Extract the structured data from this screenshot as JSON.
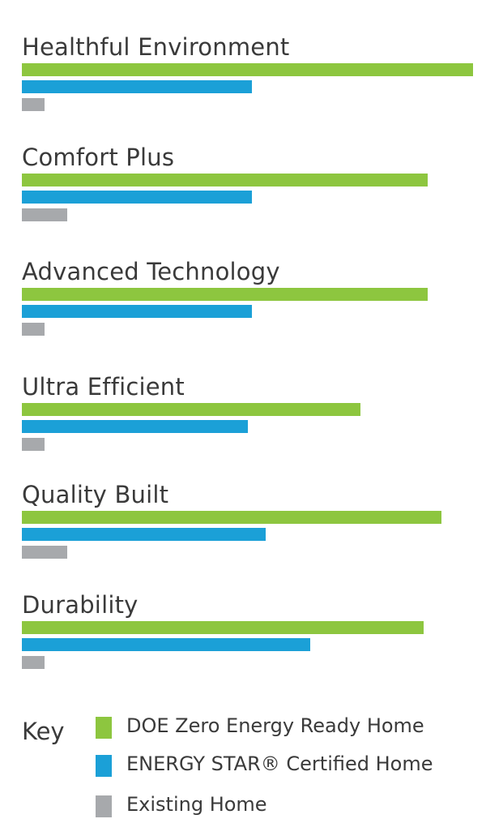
{
  "colors": {
    "doe": "#8dc63f",
    "energy_star": "#1ba0d7",
    "existing": "#a7a9ac",
    "text": "#3a3a3a"
  },
  "chart_data": {
    "type": "bar",
    "orientation": "horizontal",
    "categories": [
      "Healthful Environment",
      "Comfort Plus",
      "Advanced Technology",
      "Ultra Efficient",
      "Quality Built",
      "Durability"
    ],
    "series": [
      {
        "name": "DOE Zero Energy Ready Home",
        "color": "#8dc63f",
        "values": [
          100,
          90,
          90,
          75,
          93,
          89
        ]
      },
      {
        "name": "ENERGY STAR® Certified Home",
        "color": "#1ba0d7",
        "values": [
          51,
          51,
          51,
          50,
          54,
          64
        ]
      },
      {
        "name": "Existing Home",
        "color": "#a7a9ac",
        "values": [
          5,
          10,
          5,
          5,
          10,
          5
        ]
      }
    ],
    "xlim": [
      0,
      100
    ],
    "grid": false,
    "axes_shown": false,
    "legend": {
      "title": "Key",
      "placement": "bottom"
    }
  }
}
